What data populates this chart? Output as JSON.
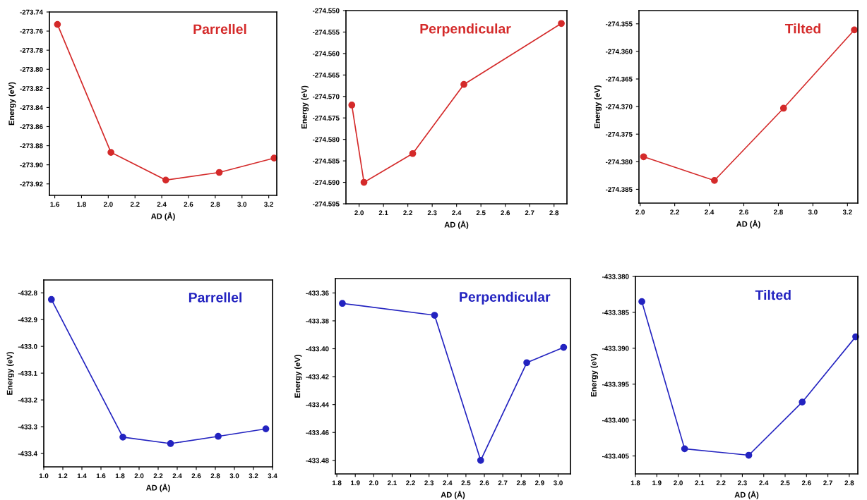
{
  "chart_data": [
    {
      "type": "line",
      "title": "Parrellel",
      "xlabel": "AD (Å)",
      "ylabel": "Energy (eV)",
      "marker": "circle",
      "line_style": "solid",
      "grid": false,
      "series": [
        {
          "color": "#d42a2a",
          "x": [
            1.62,
            2.02,
            2.43,
            2.83,
            3.24
          ],
          "values": [
            -273.753,
            -273.887,
            -273.916,
            -273.908,
            -273.893
          ]
        }
      ],
      "xlim": [
        1.56,
        3.26
      ],
      "xticks": [
        1.6,
        1.8,
        {
          "value": 2.0,
          "label": "2.0"
        },
        2.2,
        2.4,
        2.6,
        2.8,
        {
          "value": 3.0,
          "label": "3.0"
        },
        3.2
      ],
      "ylim": [
        -273.932,
        -273.74
      ],
      "yticks": [
        -273.92,
        {
          "value": -273.9,
          "label": "-273.90"
        },
        -273.88,
        -273.86,
        -273.84,
        -273.82,
        {
          "value": -273.8,
          "label": "-273.80"
        },
        -273.78,
        -273.76,
        -273.74
      ]
    },
    {
      "type": "line",
      "title": "Perpendicular",
      "xlabel": "AD (Å)",
      "ylabel": "Energy (eV)",
      "marker": "circle",
      "line_style": "solid",
      "grid": false,
      "series": [
        {
          "color": "#d42a2a",
          "x": [
            1.97,
            2.02,
            2.22,
            2.43,
            2.83
          ],
          "values": [
            -274.572,
            -274.59,
            -274.5833,
            -274.5672,
            -274.553
          ]
        }
      ],
      "xlim": [
        1.946,
        2.853
      ],
      "xticks": [
        {
          "value": 2.0,
          "label": "2.0"
        },
        2.1,
        2.2,
        2.3,
        2.4,
        2.5,
        2.6,
        2.7,
        2.8
      ],
      "ylim": [
        -274.595,
        -274.55
      ],
      "yticks": [
        -274.595,
        {
          "value": -274.59,
          "label": "-274.590"
        },
        -274.585,
        {
          "value": -274.58,
          "label": "-274.580"
        },
        -274.575,
        {
          "value": -274.57,
          "label": "-274.570"
        },
        -274.565,
        {
          "value": -274.56,
          "label": "-274.560"
        },
        -274.555,
        {
          "value": -274.55,
          "label": "-274.550"
        }
      ]
    },
    {
      "type": "line",
      "title": "Tilted",
      "xlabel": "AD (Å)",
      "ylabel": "Energy (eV)",
      "marker": "circle",
      "line_style": "solid",
      "grid": false,
      "series": [
        {
          "color": "#d42a2a",
          "x": [
            2.02,
            2.43,
            2.83,
            3.24
          ],
          "values": [
            -274.3791,
            -274.3834,
            -274.3703,
            -274.3561
          ]
        }
      ],
      "xlim": [
        1.993,
        3.26
      ],
      "xticks": [
        {
          "value": 2.0,
          "label": "2.0"
        },
        2.2,
        2.4,
        2.6,
        2.8,
        {
          "value": 3.0,
          "label": "3.0"
        },
        3.2
      ],
      "ylim": [
        -274.3875,
        -274.3526
      ],
      "yticks": [
        -274.385,
        {
          "value": -274.38,
          "label": "-274.380"
        },
        -274.375,
        {
          "value": -274.37,
          "label": "-274.370"
        },
        -274.365,
        {
          "value": -274.36,
          "label": "-274.360"
        },
        -274.355
      ]
    },
    {
      "type": "line",
      "title": "Parrellel",
      "xlabel": "AD (Å)",
      "ylabel": "Energy (eV)",
      "marker": "circle",
      "line_style": "solid",
      "grid": false,
      "series": [
        {
          "color": "#2323c0",
          "x": [
            1.08,
            1.83,
            2.33,
            2.83,
            3.33
          ],
          "values": [
            -432.825,
            -433.339,
            -433.363,
            -433.336,
            -433.308
          ]
        }
      ],
      "xlim": [
        1.0,
        3.4
      ],
      "xticks": [
        {
          "value": 1.0,
          "label": "1.0"
        },
        1.2,
        1.4,
        1.6,
        1.8,
        {
          "value": 2.0,
          "label": "2.0"
        },
        2.2,
        2.4,
        2.6,
        2.8,
        {
          "value": 3.0,
          "label": "3.0"
        },
        3.2,
        3.4
      ],
      "ylim": [
        -433.45,
        -432.752
      ],
      "yticks": [
        -433.4,
        -433.3,
        -433.2,
        -433.1,
        {
          "value": -433.0,
          "label": "-433.0"
        },
        -432.9,
        -432.8
      ]
    },
    {
      "type": "line",
      "title": "Perpendicular",
      "xlabel": "AD (Å)",
      "ylabel": "Energy (eV)",
      "marker": "circle",
      "line_style": "solid",
      "grid": false,
      "series": [
        {
          "color": "#2323c0",
          "x": [
            1.83,
            2.33,
            2.58,
            2.83,
            3.03
          ],
          "values": [
            -433.3675,
            -433.376,
            -433.48,
            -433.41,
            -433.399
          ]
        }
      ],
      "xlim": [
        1.792,
        3.067
      ],
      "xticks": [
        1.8,
        1.9,
        {
          "value": 2.0,
          "label": "2.0"
        },
        2.1,
        2.2,
        2.3,
        2.4,
        2.5,
        2.6,
        2.7,
        2.8,
        2.9,
        {
          "value": 3.0,
          "label": "3.0"
        }
      ],
      "ylim": [
        -433.4897,
        -433.3497
      ],
      "yticks": [
        -433.48,
        -433.46,
        -433.44,
        -433.42,
        {
          "value": -433.4,
          "label": "-433.40"
        },
        -433.38,
        -433.36
      ]
    },
    {
      "type": "line",
      "title": "Tilted",
      "xlabel": "AD (Å)",
      "ylabel": "Energy (eV)",
      "marker": "circle",
      "line_style": "solid",
      "grid": false,
      "series": [
        {
          "color": "#2323c0",
          "x": [
            1.83,
            2.03,
            2.33,
            2.58,
            2.83
          ],
          "values": [
            -433.3835,
            -433.404,
            -433.4049,
            -433.3975,
            -433.3884
          ]
        }
      ],
      "xlim": [
        1.8,
        2.84
      ],
      "xticks": [
        1.8,
        1.9,
        {
          "value": 2.0,
          "label": "2.0"
        },
        2.1,
        2.2,
        2.3,
        2.4,
        2.5,
        2.6,
        2.7,
        2.8
      ],
      "ylim": [
        -433.4075,
        -433.38
      ],
      "yticks": [
        -433.405,
        {
          "value": -433.4,
          "label": "-433.400"
        },
        -433.395,
        {
          "value": -433.39,
          "label": "-433.390"
        },
        -433.385,
        {
          "value": -433.38,
          "label": "-433.380"
        }
      ]
    }
  ]
}
